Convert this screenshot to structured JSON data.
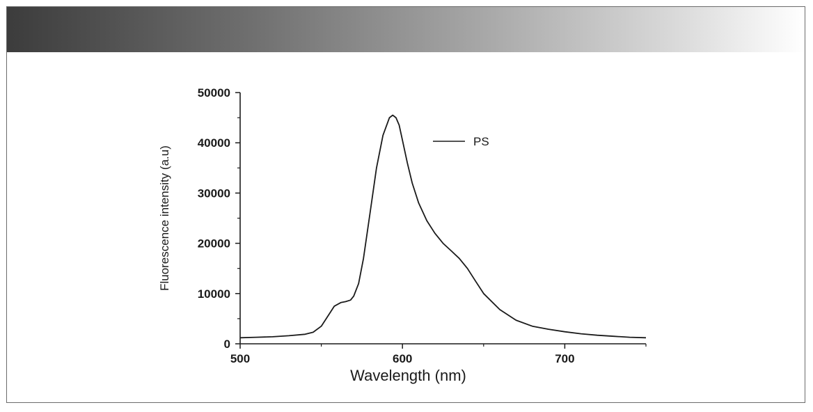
{
  "figure": {
    "accent_colors": {
      "band_start": "#3c3c3c",
      "band_end": "#ffffff",
      "line": "#1a1a1a"
    }
  },
  "chart_data": {
    "type": "line",
    "title": "",
    "xlabel": "Wavelength (nm)",
    "ylabel": "Fluorescence intensity (a.u)",
    "xlim": [
      500,
      750
    ],
    "ylim": [
      0,
      50000
    ],
    "x_ticks": [
      500,
      600,
      700
    ],
    "y_ticks": [
      0,
      10000,
      20000,
      30000,
      40000,
      50000
    ],
    "x_tick_labels": [
      "500",
      "600",
      "700"
    ],
    "y_tick_labels": [
      "0",
      "10000",
      "20000",
      "30000",
      "40000",
      "50000"
    ],
    "legend_placement": "top-right",
    "grid": false,
    "series": [
      {
        "name": "PS",
        "x": [
          500,
          510,
          520,
          530,
          540,
          545,
          550,
          555,
          558,
          562,
          565,
          568,
          570,
          573,
          576,
          580,
          584,
          588,
          592,
          594,
          596,
          598,
          600,
          603,
          606,
          610,
          615,
          620,
          625,
          630,
          635,
          640,
          645,
          650,
          660,
          670,
          680,
          690,
          700,
          710,
          720,
          730,
          740,
          750
        ],
        "y": [
          1200,
          1300,
          1400,
          1600,
          1900,
          2300,
          3500,
          6000,
          7500,
          8200,
          8400,
          8700,
          9500,
          12000,
          17000,
          26000,
          35000,
          41500,
          45000,
          45500,
          45000,
          43500,
          40500,
          36000,
          32000,
          28000,
          24500,
          22000,
          20000,
          18500,
          17000,
          15000,
          12500,
          10000,
          6800,
          4700,
          3500,
          2900,
          2400,
          2000,
          1700,
          1500,
          1300,
          1200
        ]
      }
    ]
  }
}
